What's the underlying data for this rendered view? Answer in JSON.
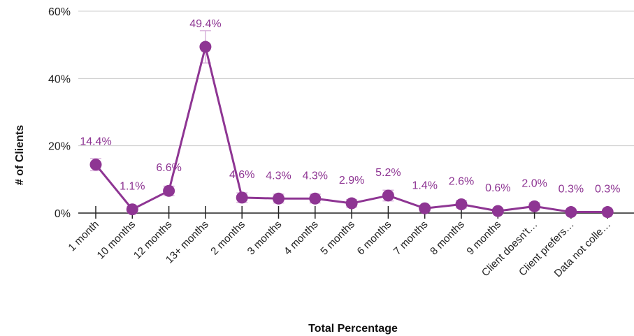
{
  "chart_data": {
    "type": "line",
    "xlabel": "Total Percentage",
    "ylabel": "# of Clients",
    "ylim": [
      0,
      60
    ],
    "yticks": [
      0,
      20,
      40,
      60
    ],
    "ytick_labels": [
      "0%",
      "20%",
      "40%",
      "60%"
    ],
    "grid": true,
    "categories": [
      "1 month",
      "10 months",
      "12 months",
      "13+ months",
      "2 months",
      "3 months",
      "4 months",
      "5 months",
      "6 months",
      "7 months",
      "8 months",
      "9 months",
      "Client doesn't…",
      "Client prefers…",
      "Data not colle…"
    ],
    "series": [
      {
        "values": [
          14.4,
          1.1,
          6.6,
          49.4,
          4.6,
          4.3,
          4.3,
          2.9,
          5.2,
          1.4,
          2.6,
          0.6,
          2.0,
          0.3,
          0.3
        ],
        "labels": [
          "14.4%",
          "1.1%",
          "6.6%",
          "49.4%",
          "4.6%",
          "4.3%",
          "4.3%",
          "2.9%",
          "5.2%",
          "1.4%",
          "2.6%",
          "0.6%",
          "2.0%",
          "0.3%",
          "0.3%"
        ],
        "error_upper": [
          16.2,
          2.0,
          8.0,
          54.2,
          6.0,
          5.6,
          5.6,
          4.0,
          6.8,
          2.3,
          3.7,
          1.2,
          3.1,
          0.8,
          0.8
        ],
        "error_lower": [
          12.6,
          0.2,
          5.2,
          44.6,
          3.2,
          3.0,
          3.0,
          1.8,
          3.6,
          0.5,
          1.5,
          0.0,
          0.9,
          0.0,
          0.0
        ]
      }
    ],
    "colors": {
      "series": "#8e3593",
      "grid": "#cccccc",
      "axis": "#222222",
      "errorbar": "#d9b3dc"
    }
  }
}
